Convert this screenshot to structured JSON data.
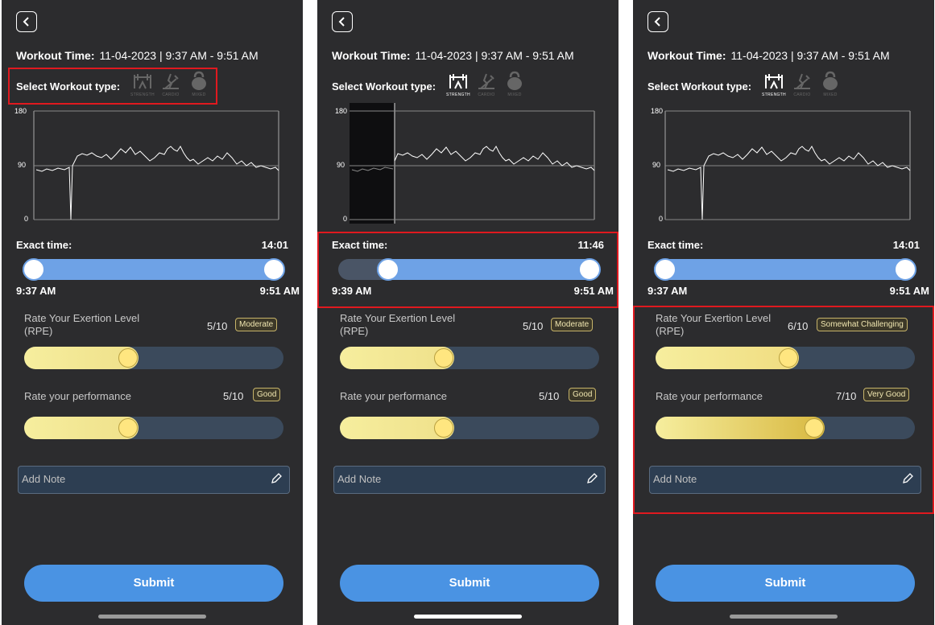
{
  "accent_color": "#e0191f",
  "panels": [
    {
      "back_icon": "chevron-left-icon",
      "workout_time_label": "Workout Time:",
      "workout_time_value": "11-04-2023 | 9:37 AM - 9:51 AM",
      "select_type_label": "Select Workout type:",
      "types": [
        {
          "label": "STRENGTH",
          "icon": "strength-icon",
          "selected": false
        },
        {
          "label": "CARDIO",
          "icon": "cardio-icon",
          "selected": false
        },
        {
          "label": "MIXED",
          "icon": "kettlebell-icon",
          "selected": false
        }
      ],
      "chart_data": {
        "type": "line",
        "yticks": [
          "180",
          "90",
          "0"
        ],
        "ylim": [
          0,
          180
        ],
        "description": "Heart-rate trace over workout; dip at start then fluctuates around 100"
      },
      "exact_time_label": "Exact time:",
      "exact_time_value": "14:01",
      "range_start": "9:37 AM",
      "range_end": "9:51 AM",
      "rpe": {
        "title": "Rate Your Exertion Level (RPE)",
        "value": "5/10",
        "badge": "Moderate",
        "level": 0.44,
        "emoji": "confused-face-icon"
      },
      "performance": {
        "title": "Rate your performance",
        "value": "5/10",
        "badge": "Good",
        "level": 0.42,
        "emoji": "neutral-face-icon"
      },
      "note_placeholder": "Add Note",
      "submit_label": "Submit"
    },
    {
      "back_icon": "chevron-left-icon",
      "workout_time_label": "Workout Time:",
      "workout_time_value": "11-04-2023 | 9:37 AM - 9:51 AM",
      "select_type_label": "Select Workout type:",
      "types": [
        {
          "label": "STRENGTH",
          "icon": "strength-icon",
          "selected": true
        },
        {
          "label": "CARDIO",
          "icon": "cardio-icon",
          "selected": false
        },
        {
          "label": "MIXED",
          "icon": "kettlebell-icon",
          "selected": false
        }
      ],
      "chart_data": {
        "type": "line",
        "yticks": [
          "180",
          "90",
          "0"
        ],
        "ylim": [
          0,
          180
        ],
        "description": "Heart-rate trace with excluded shaded region at start"
      },
      "exact_time_label": "Exact time:",
      "exact_time_value": "11:46",
      "range_start": "9:39 AM",
      "range_end": "9:51 AM",
      "rpe": {
        "title": "Rate Your Exertion Level (RPE)",
        "value": "5/10",
        "badge": "Moderate",
        "level": 0.44,
        "emoji": "confused-face-icon"
      },
      "performance": {
        "title": "Rate your performance",
        "value": "5/10",
        "badge": "Good",
        "level": 0.42,
        "emoji": "neutral-face-icon"
      },
      "note_placeholder": "Add Note",
      "submit_label": "Submit"
    },
    {
      "back_icon": "chevron-left-icon",
      "workout_time_label": "Workout Time:",
      "workout_time_value": "11-04-2023 | 9:37 AM - 9:51 AM",
      "select_type_label": "Select Workout type:",
      "types": [
        {
          "label": "STRENGTH",
          "icon": "strength-icon",
          "selected": true
        },
        {
          "label": "CARDIO",
          "icon": "cardio-icon",
          "selected": false
        },
        {
          "label": "MIXED",
          "icon": "kettlebell-icon",
          "selected": false
        }
      ],
      "chart_data": {
        "type": "line",
        "yticks": [
          "180",
          "90",
          "0"
        ],
        "ylim": [
          0,
          180
        ],
        "description": "Heart-rate trace over workout"
      },
      "exact_time_label": "Exact time:",
      "exact_time_value": "14:01",
      "range_start": "9:37 AM",
      "range_end": "9:51 AM",
      "rpe": {
        "title": "Rate Your Exertion Level (RPE)",
        "value": "6/10",
        "badge": "Somewhat Challenging",
        "level": 0.55,
        "emoji": "grimace-face-icon"
      },
      "performance": {
        "title": "Rate your performance",
        "value": "7/10",
        "badge": "Very Good",
        "level": 0.64,
        "emoji": "smile-face-icon"
      },
      "note_placeholder": "Add Note",
      "submit_label": "Submit"
    }
  ]
}
